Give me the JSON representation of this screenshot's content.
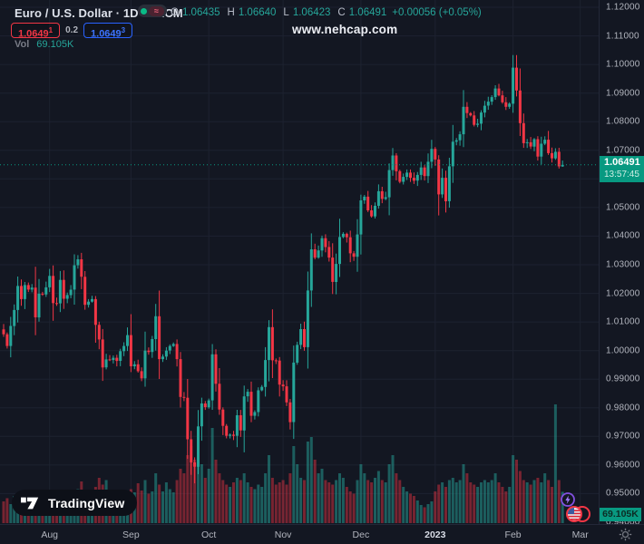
{
  "header": {
    "symbol_title": "Euro / U.S. Dollar · 1D · FXCM",
    "ohlc": {
      "o_label": "O",
      "o": "1.06435",
      "h_label": "H",
      "h": "1.06640",
      "l_label": "L",
      "l": "1.06423",
      "c_label": "C",
      "c": "1.06491",
      "change": "+0.00056 (+0.05%)"
    },
    "bid_badge": {
      "main": "1.0649",
      "sup": "1"
    },
    "spread": "0.2",
    "ask_badge": {
      "main": "1.0649",
      "sup": "3"
    },
    "vol_label": "Vol",
    "vol_value": "69.105K",
    "status_squiggle": "≈"
  },
  "watermark": "www.nehcap.com",
  "logo": {
    "text": "TradingView"
  },
  "colors": {
    "background": "#131722",
    "grid": "#1d2230",
    "up": "#26a69a",
    "down": "#f23645",
    "accent": "#089981",
    "vol_up": "rgba(38,166,154,0.5)",
    "vol_down": "rgba(242,54,69,0.45)",
    "axis_text": "#b2b5be",
    "bid": "#f23645",
    "ask": "#2962ff",
    "event_purple": "#8250e0"
  },
  "price_axis": {
    "max": 1.12,
    "min": 0.94,
    "step": 0.01,
    "decimals": 5,
    "last_price_badge": {
      "price": "1.06491",
      "countdown": "13:57:45"
    },
    "volume_badge": "69.105K"
  },
  "time_axis": {
    "months": [
      {
        "label": "Aug",
        "index": 13
      },
      {
        "label": "Sep",
        "index": 36
      },
      {
        "label": "Oct",
        "index": 58
      },
      {
        "label": "Nov",
        "index": 79
      },
      {
        "label": "Dec",
        "index": 101
      },
      {
        "label": "2023",
        "index": 122,
        "highlight": true
      },
      {
        "label": "Feb",
        "index": 144
      },
      {
        "label": "Mar",
        "index": 163
      }
    ]
  },
  "chart_data": {
    "type": "candlestick",
    "title": "Euro / U.S. Dollar",
    "symbol": "EUR/USD",
    "timeframe": "1D",
    "exchange": "FXCM",
    "start_date": "2022-07-13",
    "frequency": "trading-days",
    "ylim": [
      0.94,
      1.12
    ],
    "grid": true,
    "first_open": 1.0074,
    "peak_high": 1.1033,
    "trough_low": 0.9536,
    "last_price_line": 1.06491,
    "closes": [
      1.0057,
      1.0016,
      1.0086,
      1.0142,
      1.0226,
      1.018,
      1.0229,
      1.0213,
      1.022,
      1.0116,
      1.0199,
      1.0196,
      1.0221,
      1.0261,
      1.0166,
      1.0165,
      1.0247,
      1.0181,
      1.0194,
      1.0213,
      1.0298,
      1.0319,
      1.0258,
      1.016,
      1.0171,
      1.018,
      1.009,
      1.0039,
      0.9941,
      0.9969,
      0.9967,
      0.9975,
      0.9964,
      0.9998,
      1.0016,
      1.0054,
      0.9945,
      0.9952,
      0.9928,
      0.9903,
      1.0,
      0.9995,
      1.004,
      1.012,
      0.997,
      0.9979,
      1.0,
      1.0016,
      1.0023,
      0.997,
      0.9838,
      0.9835,
      0.969,
      0.9609,
      0.9594,
      0.9735,
      0.9815,
      0.9802,
      0.9826,
      0.9987,
      0.9884,
      0.9794,
      0.9737,
      0.9702,
      0.9706,
      0.9702,
      0.9774,
      0.9721,
      0.984,
      0.9856,
      0.9772,
      0.9785,
      0.9861,
      0.9873,
      0.9967,
      1.0082,
      0.9966,
      0.9965,
      0.9881,
      0.9875,
      0.9819,
      0.975,
      0.9958,
      1.002,
      1.0075,
      1.0012,
      1.021,
      1.0354,
      1.0325,
      1.035,
      1.0393,
      1.0362,
      1.0325,
      1.024,
      1.0303,
      1.0397,
      1.0408,
      1.0396,
      1.034,
      1.0328,
      1.0406,
      1.0525,
      1.0538,
      1.049,
      1.0469,
      1.0506,
      1.0557,
      1.053,
      1.0536,
      1.0631,
      1.0682,
      1.0627,
      1.059,
      1.0607,
      1.0622,
      1.0604,
      1.0594,
      1.0614,
      1.064,
      1.061,
      1.066,
      1.0705,
      1.0668,
      1.0546,
      1.0604,
      1.0522,
      1.0644,
      1.073,
      1.0735,
      1.0756,
      1.0852,
      1.083,
      1.0822,
      1.0789,
      1.0793,
      1.0832,
      1.0856,
      1.087,
      1.0886,
      1.0916,
      1.0892,
      1.0868,
      1.0852,
      1.0863,
      1.0989,
      1.0909,
      1.0795,
      1.0725,
      1.0728,
      1.0713,
      1.0739,
      1.0678,
      1.0723,
      1.0737,
      1.069,
      1.0672,
      1.0695,
      1.0644,
      1.06491
    ],
    "volumes_k": [
      48,
      55,
      42,
      60,
      52,
      58,
      45,
      62,
      40,
      73,
      58,
      45,
      50,
      65,
      52,
      48,
      70,
      55,
      42,
      50,
      68,
      75,
      92,
      60,
      48,
      52,
      80,
      100,
      85,
      95,
      72,
      60,
      55,
      58,
      62,
      70,
      75,
      68,
      88,
      72,
      95,
      65,
      70,
      110,
      85,
      70,
      90,
      75,
      68,
      95,
      120,
      110,
      150,
      170,
      140,
      180,
      130,
      100,
      120,
      210,
      140,
      110,
      95,
      85,
      80,
      90,
      100,
      95,
      110,
      90,
      80,
      75,
      85,
      80,
      110,
      150,
      100,
      85,
      90,
      95,
      85,
      110,
      170,
      130,
      100,
      95,
      180,
      190,
      140,
      110,
      120,
      95,
      90,
      85,
      95,
      110,
      100,
      80,
      70,
      65,
      95,
      130,
      110,
      95,
      90,
      100,
      115,
      95,
      90,
      130,
      150,
      110,
      95,
      80,
      70,
      65,
      60,
      50,
      40,
      35,
      42,
      48,
      70,
      85,
      90,
      80,
      95,
      100,
      90,
      95,
      130,
      110,
      90,
      85,
      80,
      90,
      95,
      90,
      95,
      110,
      90,
      80,
      70,
      80,
      150,
      140,
      115,
      95,
      90,
      85,
      95,
      100,
      90,
      110,
      95,
      80,
      262,
      95,
      69.105
    ],
    "last": {
      "open": 1.06435,
      "high": 1.0664,
      "low": 1.06423,
      "close": 1.06491,
      "volume_k": 69.105
    }
  }
}
